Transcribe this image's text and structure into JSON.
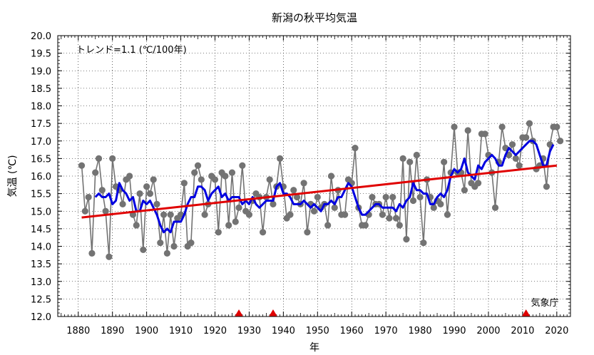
{
  "chart_data": {
    "type": "line",
    "title": "新潟の秋平均気温",
    "xlabel": "年",
    "ylabel": "気温 (℃)",
    "annotation": "トレンド=1.1 (℃/100年)",
    "source": "気象庁",
    "xlim": [
      1874,
      2024
    ],
    "ylim": [
      12.0,
      20.0
    ],
    "x_ticks": [
      "1880",
      "1890",
      "1900",
      "1910",
      "1920",
      "1930",
      "1940",
      "1950",
      "1960",
      "1970",
      "1980",
      "1990",
      "2000",
      "2010",
      "2020"
    ],
    "y_ticks": [
      "12.0",
      "12.5",
      "13.0",
      "13.5",
      "14.0",
      "14.5",
      "15.0",
      "15.5",
      "16.0",
      "16.5",
      "17.0",
      "17.5",
      "18.0",
      "18.5",
      "19.0",
      "19.5",
      "20.0"
    ],
    "grid": true,
    "colors": {
      "annual": "#737373",
      "moving_average": "#0000e0",
      "trend": "#e00000",
      "marker": "#e00000"
    },
    "series": [
      {
        "style": "annual",
        "x_start": 1881,
        "values": [
          16.3,
          15.0,
          15.4,
          13.8,
          16.1,
          16.5,
          15.6,
          15.0,
          13.7,
          16.5,
          15.7,
          15.6,
          15.2,
          15.9,
          16.0,
          14.9,
          14.6,
          15.5,
          13.9,
          15.7,
          15.5,
          15.9,
          15.2,
          14.1,
          14.9,
          13.8,
          14.9,
          14.0,
          14.8,
          14.9,
          15.8,
          14.0,
          14.1,
          16.1,
          16.3,
          15.9,
          14.9,
          15.2,
          16.0,
          15.9,
          14.4,
          16.1,
          16.0,
          14.6,
          16.1,
          14.7,
          15.1,
          16.3,
          15.0,
          14.9,
          15.3,
          15.5,
          15.4,
          14.4,
          15.4,
          15.9,
          15.2,
          15.7,
          16.5,
          15.7,
          14.8,
          14.9,
          15.6,
          15.4,
          15.2,
          15.8,
          14.4,
          15.2,
          15.0,
          15.4,
          15.1,
          15.2,
          14.6,
          16.0,
          15.1,
          15.6,
          14.9,
          14.9,
          15.9,
          15.8,
          16.8,
          15.1,
          14.6,
          14.6,
          14.9,
          15.4,
          15.2,
          15.2,
          14.9,
          15.4,
          14.8,
          15.4,
          14.8,
          14.6,
          16.5,
          14.2,
          16.4,
          15.3,
          16.6,
          15.4,
          14.1,
          15.9,
          15.4,
          15.1,
          15.3,
          15.2,
          16.4,
          14.9,
          16.1,
          17.4,
          16.1,
          16.1,
          15.6,
          17.3,
          15.8,
          15.7,
          15.8,
          17.2,
          17.2,
          16.6,
          16.1,
          15.1,
          16.4,
          17.4,
          16.8,
          16.6,
          16.9,
          16.5,
          16.3,
          17.1,
          17.1,
          17.5,
          17.0,
          16.2,
          16.3,
          16.5,
          15.7,
          16.9,
          17.4,
          17.4,
          17.0
        ]
      },
      {
        "style": "moving_average",
        "x_start": 1885,
        "values": [
          15.4,
          15.5,
          15.4,
          15.4,
          15.5,
          15.2,
          15.3,
          15.8,
          15.6,
          15.5,
          15.3,
          15.4,
          15.0,
          15.0,
          15.3,
          15.2,
          15.3,
          15.1,
          14.9,
          14.6,
          14.4,
          14.5,
          14.4,
          14.7,
          14.7,
          14.7,
          14.9,
          15.2,
          15.4,
          15.4,
          15.7,
          15.7,
          15.6,
          15.3,
          15.5,
          15.6,
          15.7,
          15.4,
          15.5,
          15.3,
          15.4,
          15.4,
          15.4,
          15.2,
          15.3,
          15.2,
          15.4,
          15.2,
          15.1,
          15.2,
          15.3,
          15.3,
          15.3,
          15.7,
          15.8,
          15.5,
          15.5,
          15.4,
          15.2,
          15.2,
          15.2,
          15.3,
          15.2,
          15.1,
          15.2,
          15.1,
          15.0,
          15.2,
          15.2,
          15.3,
          15.2,
          15.4,
          15.4,
          15.6,
          15.8,
          15.7,
          15.4,
          15.1,
          14.9,
          14.9,
          15.0,
          15.1,
          15.2,
          15.2,
          15.1,
          15.1,
          15.1,
          15.1,
          15.0,
          15.2,
          15.1,
          15.3,
          15.4,
          15.8,
          15.6,
          15.6,
          15.5,
          15.5,
          15.2,
          15.2,
          15.4,
          15.5,
          15.4,
          15.6,
          16.0,
          16.2,
          16.1,
          16.2,
          16.5,
          16.1,
          16.0,
          15.9,
          16.3,
          16.2,
          16.4,
          16.5,
          16.6,
          16.5,
          16.3,
          16.3,
          16.6,
          16.8,
          16.7,
          16.6,
          16.7,
          16.8,
          16.9,
          17.0,
          17.0,
          16.9,
          16.6,
          16.3,
          16.3,
          16.7,
          16.9
        ]
      }
    ],
    "trend": {
      "x": [
        1881,
        2020
      ],
      "y": [
        14.82,
        16.3
      ]
    },
    "markers": [
      1927,
      1937,
      2011
    ]
  }
}
